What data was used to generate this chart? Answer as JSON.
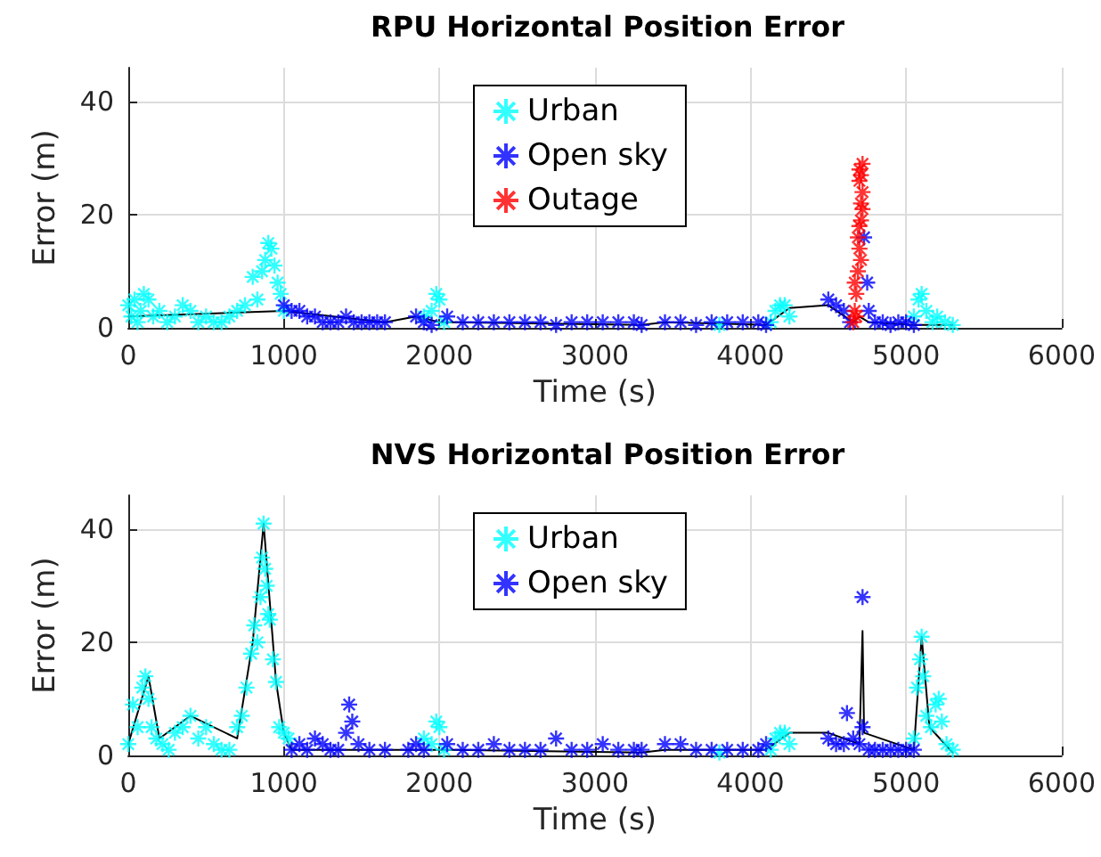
{
  "chart_data": [
    {
      "type": "scatter",
      "title": "RPU Horizontal Position Error",
      "xlabel": "Time (s)",
      "ylabel": "Error (m)",
      "xlim": [
        0,
        6000
      ],
      "xticks": [
        0,
        1000,
        2000,
        3000,
        4000,
        5000,
        6000
      ],
      "ylim": [
        0,
        46
      ],
      "yticks": [
        0,
        20,
        40
      ],
      "grid": true,
      "legend": "top",
      "marker": "cross",
      "series": [
        {
          "type": "line",
          "color": "#000000",
          "marker": "none",
          "x": [
            0,
            1000,
            1650,
            1850,
            2000,
            2050,
            3300,
            3450,
            4100,
            4250,
            4500,
            4660,
            4700,
            4760,
            5050,
            5300
          ],
          "values": [
            2,
            3,
            1,
            2,
            1,
            1,
            0.5,
            1,
            0.5,
            3.5,
            4,
            1,
            2,
            1,
            0.5,
            0.5
          ]
        },
        {
          "name": "Urban",
          "color": "#00ffff",
          "x": [
            0,
            20,
            40,
            60,
            80,
            100,
            130,
            160,
            200,
            250,
            300,
            350,
            400,
            450,
            500,
            550,
            600,
            650,
            700,
            750,
            800,
            830,
            860,
            880,
            900,
            920,
            940,
            960,
            980,
            1000,
            1900,
            1950,
            1980,
            2000,
            2030,
            3800,
            4130,
            4160,
            4190,
            4220,
            4250,
            5050,
            5080,
            5100,
            5130,
            5170,
            5200,
            5250,
            5300
          ],
          "values": [
            4,
            2,
            5,
            1,
            3,
            6,
            5,
            2,
            3,
            1,
            2,
            4,
            3,
            1,
            2,
            1,
            1,
            2,
            3,
            4,
            9,
            5,
            10,
            12,
            15,
            14,
            11,
            8,
            6,
            3,
            2,
            3,
            6,
            5,
            1,
            0.5,
            1,
            3,
            4,
            4,
            2,
            2,
            5,
            6,
            3,
            1,
            2,
            1,
            0.5
          ]
        },
        {
          "name": "Open sky",
          "color": "#0000ff",
          "x": [
            1000,
            1050,
            1100,
            1150,
            1200,
            1250,
            1300,
            1350,
            1400,
            1450,
            1500,
            1550,
            1600,
            1650,
            1850,
            1900,
            1950,
            2050,
            2150,
            2250,
            2350,
            2450,
            2550,
            2650,
            2750,
            2850,
            2950,
            3050,
            3150,
            3250,
            3300,
            3450,
            3550,
            3650,
            3750,
            3850,
            3950,
            4050,
            4100,
            4500,
            4550,
            4600,
            4640,
            4730,
            4750,
            4760,
            4800,
            4850,
            4900,
            4950,
            5000,
            5050
          ],
          "values": [
            4,
            3,
            3,
            2,
            2,
            1,
            1,
            1,
            2,
            1,
            1,
            1,
            1,
            1,
            2,
            1,
            0.5,
            2,
            1,
            1,
            1,
            1,
            1,
            1,
            0.5,
            1,
            1,
            1,
            1,
            1,
            0.5,
            1,
            1,
            0.5,
            1,
            1,
            1,
            1,
            0.5,
            5,
            4,
            3,
            1,
            16,
            8,
            3,
            1,
            1,
            0.5,
            1,
            1,
            0.5
          ]
        },
        {
          "name": "Outage",
          "color": "#ff0000",
          "x": [
            4660,
            4670,
            4680,
            4690,
            4700,
            4700,
            4710,
            4710,
            4720,
            4720,
            4680,
            4700,
            4690,
            4710,
            4720,
            4670,
            4700,
            4710
          ],
          "values": [
            1,
            3,
            6,
            10,
            14,
            18,
            22,
            27,
            29,
            21,
            2,
            26,
            16,
            12,
            24,
            8,
            28,
            19
          ]
        }
      ]
    },
    {
      "type": "scatter",
      "title": "NVS Horizontal Position Error",
      "xlabel": "Time (s)",
      "ylabel": "Error (m)",
      "xlim": [
        0,
        6000
      ],
      "xticks": [
        0,
        1000,
        2000,
        3000,
        4000,
        5000,
        6000
      ],
      "ylim": [
        0,
        46
      ],
      "yticks": [
        0,
        20,
        40
      ],
      "grid": true,
      "legend": "top",
      "marker": "cross",
      "series": [
        {
          "type": "line",
          "color": "#000000",
          "marker": "none",
          "x": [
            0,
            130,
            200,
            400,
            700,
            800,
            870,
            950,
            1000,
            1050,
            1650,
            1800,
            1900,
            2050,
            3300,
            3450,
            4100,
            4250,
            4500,
            4700,
            4720,
            4730,
            5050,
            5100,
            5150,
            5300
          ],
          "values": [
            2,
            14,
            3,
            7,
            3,
            20,
            41,
            13,
            4,
            1,
            1,
            1,
            1,
            1,
            0.5,
            1,
            1,
            4,
            4,
            2,
            22,
            4,
            1,
            21,
            5,
            0.5
          ]
        },
        {
          "name": "Urban",
          "color": "#00ffff",
          "x": [
            0,
            30,
            60,
            90,
            110,
            130,
            150,
            180,
            220,
            260,
            300,
            350,
            400,
            450,
            500,
            550,
            600,
            650,
            700,
            730,
            760,
            790,
            810,
            830,
            850,
            860,
            870,
            880,
            890,
            900,
            910,
            930,
            950,
            970,
            1000,
            1030,
            1900,
            1950,
            1980,
            2000,
            2030,
            3800,
            4130,
            4160,
            4190,
            4220,
            4250,
            5050,
            5070,
            5090,
            5100,
            5110,
            5130,
            5160,
            5190,
            5210,
            5230,
            5260,
            5300
          ],
          "values": [
            2,
            9,
            5,
            12,
            14,
            10,
            5,
            3,
            2,
            1,
            4,
            5,
            7,
            3,
            5,
            2,
            1,
            1,
            5,
            7,
            12,
            18,
            23,
            20,
            28,
            35,
            41,
            33,
            30,
            25,
            24,
            17,
            13,
            5,
            4,
            3,
            3,
            2,
            6,
            5,
            1,
            0.5,
            1,
            3,
            4,
            4,
            2,
            3,
            12,
            17,
            21,
            14,
            7,
            5,
            9,
            10,
            6,
            2,
            1
          ]
        },
        {
          "name": "Open sky",
          "color": "#0000ff",
          "x": [
            1050,
            1100,
            1150,
            1200,
            1250,
            1300,
            1350,
            1400,
            1420,
            1440,
            1480,
            1550,
            1650,
            1800,
            1850,
            1900,
            2050,
            2150,
            2250,
            2350,
            2450,
            2550,
            2650,
            2750,
            2850,
            2950,
            3050,
            3150,
            3250,
            3300,
            3450,
            3550,
            3650,
            3750,
            3850,
            3950,
            4050,
            4100,
            4500,
            4550,
            4600,
            4620,
            4660,
            4700,
            4720,
            4720,
            4760,
            4800,
            4850,
            4900,
            4950,
            5000,
            5050
          ],
          "values": [
            1,
            2,
            1,
            3,
            2,
            1,
            1,
            4,
            9,
            6,
            2,
            1,
            1,
            1,
            2,
            1,
            2,
            1,
            1,
            2,
            1,
            1,
            1,
            3,
            1,
            1,
            2,
            1,
            1,
            1,
            2,
            2,
            1,
            1,
            1,
            1,
            1,
            2,
            3,
            2,
            2,
            7.5,
            3,
            2,
            28,
            5,
            1,
            1,
            1,
            1,
            1,
            1,
            1
          ]
        }
      ]
    }
  ]
}
